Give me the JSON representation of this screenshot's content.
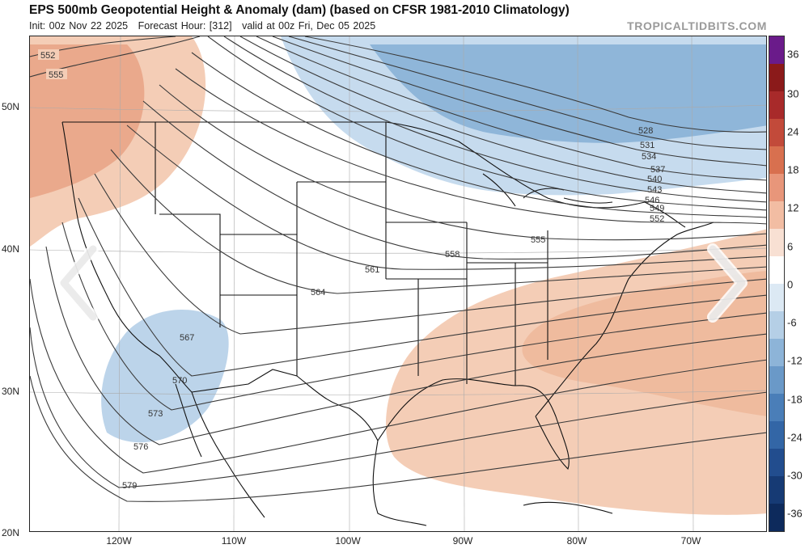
{
  "header": {
    "title": "EPS 500mb Geopotential Height & Anomaly (dam) (based on CFSR 1981-2010 Climatology)",
    "init": "Init: 00z Nov 22 2025",
    "forecast_hour": "Forecast Hour: [312]",
    "valid": "valid at 00z Fri, Dec 05 2025",
    "brand": "TROPICALTIDBITS.COM"
  },
  "colors": {
    "positive_anomaly": "#f2c8b0",
    "negative_anomaly": "#8fb6d9",
    "strong_negative": "#6e9fcc",
    "contour": "#3a3a3a",
    "border": "#111111"
  },
  "colorbar": {
    "labels": [
      "36",
      "30",
      "24",
      "18",
      "12",
      "6",
      "0",
      "-6",
      "-12",
      "-18",
      "-24",
      "-30",
      "-36"
    ],
    "colors": [
      "#6a1b8a",
      "#8b1a1a",
      "#a82a2a",
      "#c24a3a",
      "#d8704f",
      "#e8967a",
      "#f2bda3",
      "#f8e0d3",
      "#ffffff",
      "#dce9f4",
      "#b5cfe6",
      "#8db4d8",
      "#6a99c8",
      "#4a7eb8",
      "#3366a6",
      "#224d8e",
      "#163a74",
      "#0d2a5c"
    ]
  },
  "axes": {
    "lat_labels": [
      "50N",
      "40N",
      "30N",
      "20N"
    ],
    "lon_labels": [
      "120W",
      "110W",
      "100W",
      "90W",
      "80W",
      "70W"
    ]
  },
  "contours": {
    "values": [
      "552",
      "555",
      "528",
      "531",
      "534",
      "537",
      "540",
      "543",
      "546",
      "549",
      "552",
      "555",
      "558",
      "561",
      "564",
      "567",
      "570",
      "573",
      "576",
      "579"
    ]
  },
  "navigation": {
    "prev_icon": "chevron-left-icon",
    "next_icon": "chevron-right-icon"
  }
}
